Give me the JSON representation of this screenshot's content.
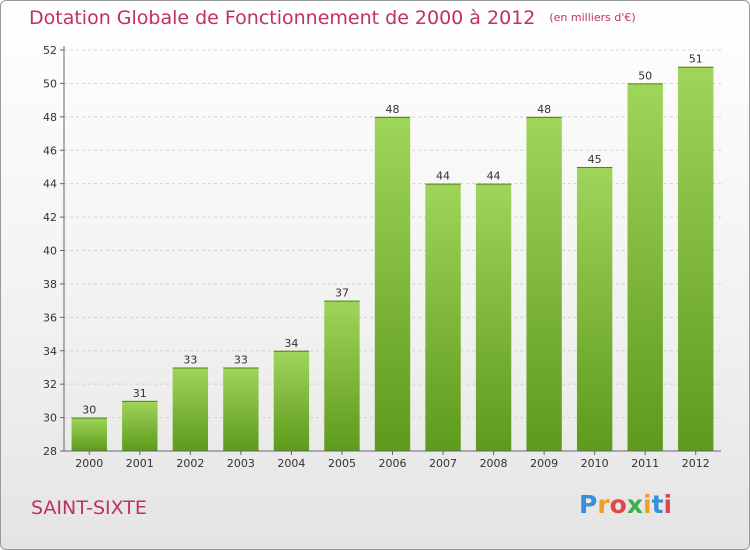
{
  "chart_data": {
    "type": "bar",
    "title": "Dotation Globale de Fonctionnement de 2000 à 2012",
    "unit_note": "(en milliers d'€)",
    "categories": [
      "2000",
      "2001",
      "2002",
      "2003",
      "2004",
      "2005",
      "2006",
      "2007",
      "2008",
      "2009",
      "2010",
      "2011",
      "2012"
    ],
    "values": [
      30,
      31,
      33,
      33,
      34,
      37,
      48,
      44,
      44,
      48,
      45,
      50,
      51
    ],
    "ylim": [
      28,
      52
    ],
    "yticks": [
      28,
      30,
      32,
      34,
      36,
      38,
      40,
      42,
      44,
      46,
      48,
      50,
      52
    ],
    "grid": true,
    "colors": {
      "bar_top": "#9fd55a",
      "bar_bottom": "#5e9a1c",
      "title": "#c0315f"
    }
  },
  "commune": "SAINT-SIXTE",
  "logo": {
    "letters": [
      "P",
      "r",
      "o",
      "x",
      "i",
      "t",
      "i"
    ],
    "colors": [
      "#3a8ed8",
      "#f0a020",
      "#e04848",
      "#3cb04a",
      "#f0a020",
      "#3a8ed8",
      "#e04848"
    ]
  }
}
